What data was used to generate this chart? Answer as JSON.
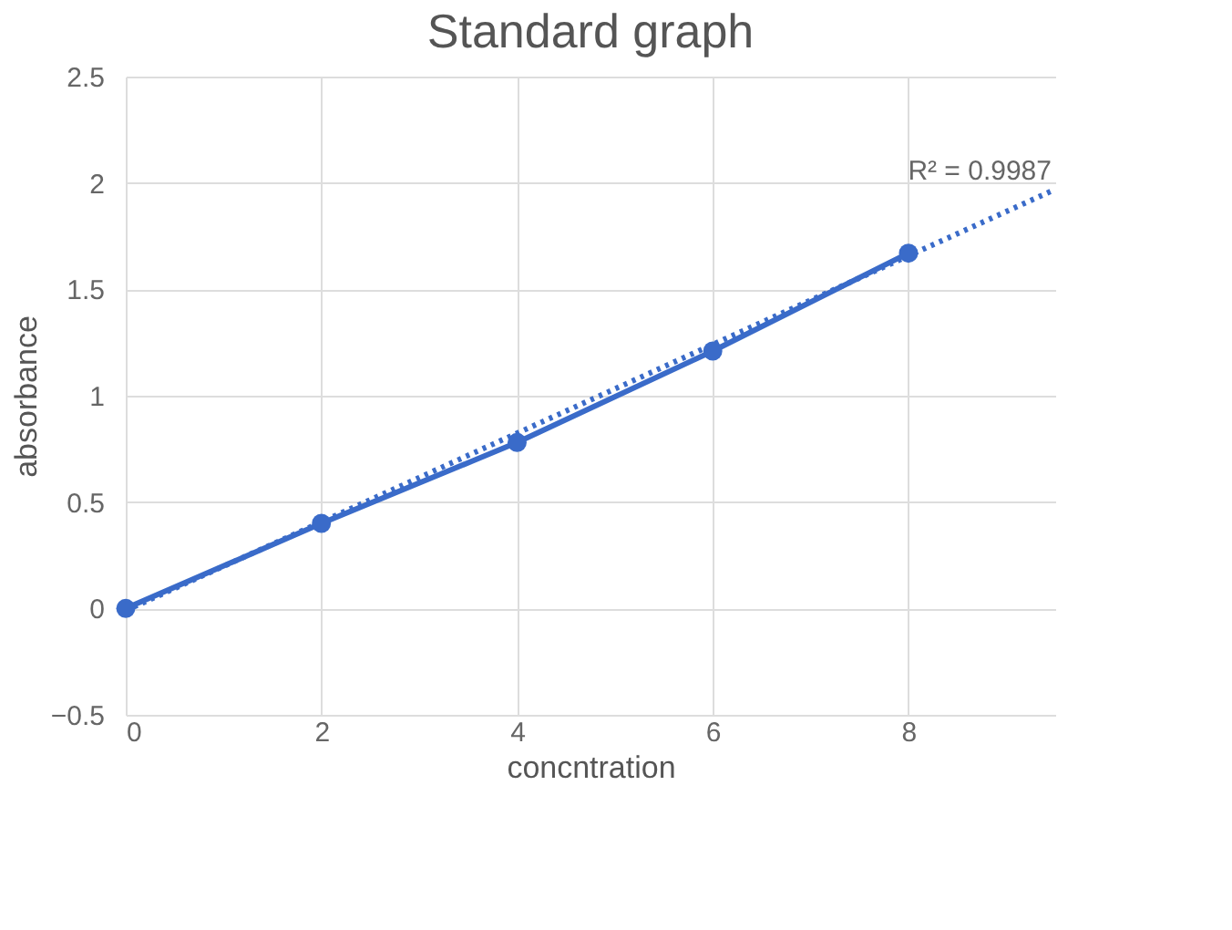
{
  "chart_data": {
    "type": "line",
    "title": "Standard graph",
    "xlabel": "concntration",
    "ylabel": "absorbance",
    "x": [
      0,
      2,
      4,
      6,
      8
    ],
    "series": [
      {
        "color": "#3a6bc9",
        "values": [
          0,
          0.4,
          0.78,
          1.21,
          1.67
        ],
        "marker": "circle",
        "line_style": "solid"
      },
      {
        "type": "line",
        "color": "#3a6bc9",
        "x": [
          0,
          9.5
        ],
        "values": [
          -0.01,
          1.97
        ],
        "marker": "none",
        "line_style": "dotted"
      }
    ],
    "annotations": [
      "R² = 0.9987"
    ],
    "xlim": [
      0,
      9.5
    ],
    "xticks": [
      0,
      2,
      4,
      6,
      8
    ],
    "ylim": [
      -0.5,
      2.5
    ],
    "yticks": [
      -0.5,
      0,
      0.5,
      1,
      1.5,
      2,
      2.5
    ],
    "grid": true
  }
}
